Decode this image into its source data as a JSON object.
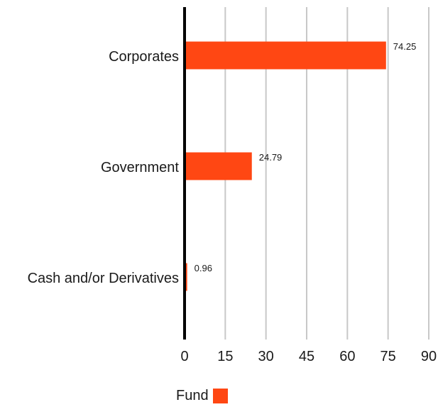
{
  "chart_data": {
    "type": "bar",
    "orientation": "horizontal",
    "categories": [
      "Corporates",
      "Government",
      "Cash and/or Derivatives"
    ],
    "series": [
      {
        "name": "Fund",
        "values": [
          74.25,
          24.79,
          0.96
        ],
        "color": "#ff4713"
      }
    ],
    "data_labels": [
      "74.25",
      "24.79",
      "0.96"
    ],
    "xlim": [
      0,
      90
    ],
    "xticks": [
      0,
      15,
      30,
      45,
      60,
      75,
      90
    ],
    "grid": true,
    "gridline_color": "#c8c8c8",
    "axis_color": "#000000",
    "legend_position": "bottom"
  }
}
